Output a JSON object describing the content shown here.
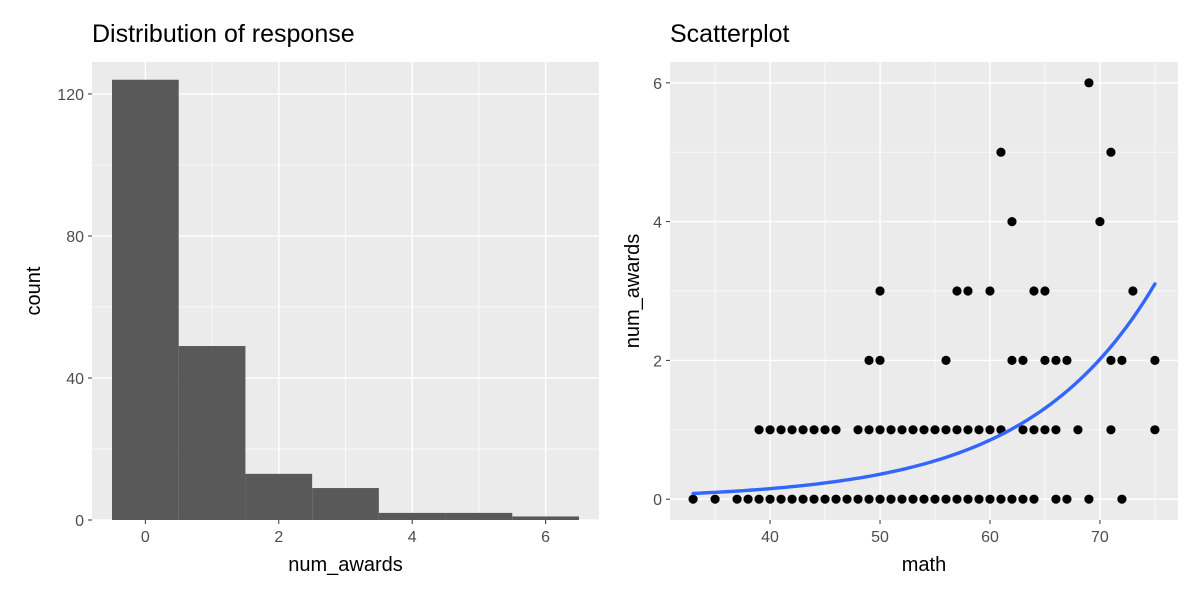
{
  "chart_data": [
    {
      "type": "bar",
      "title": "Distribution of response",
      "xlabel": "num_awards",
      "ylabel": "count",
      "xlim": [
        -0.8,
        6.8
      ],
      "ylim": [
        0,
        129
      ],
      "x_ticks": [
        0,
        2,
        4,
        6
      ],
      "y_ticks": [
        0,
        40,
        80,
        120
      ],
      "bin_width": 1,
      "bins": [
        0,
        1,
        2,
        3,
        4,
        5,
        6
      ],
      "counts": [
        124,
        49,
        13,
        9,
        2,
        2,
        1
      ],
      "bar_color": "#595959"
    },
    {
      "type": "scatter",
      "title": "Scatterplot",
      "xlabel": "math",
      "ylabel": "num_awards",
      "xlim": [
        30.9,
        77.1
      ],
      "ylim": [
        -0.3,
        6.3
      ],
      "x_ticks": [
        40,
        50,
        60,
        70
      ],
      "y_ticks": [
        0,
        2,
        4,
        6
      ],
      "point_color": "#000000",
      "points": [
        [
          33,
          0
        ],
        [
          35,
          0
        ],
        [
          37,
          0
        ],
        [
          38,
          0
        ],
        [
          39,
          0
        ],
        [
          40,
          0
        ],
        [
          41,
          0
        ],
        [
          42,
          0
        ],
        [
          43,
          0
        ],
        [
          44,
          0
        ],
        [
          45,
          0
        ],
        [
          46,
          0
        ],
        [
          47,
          0
        ],
        [
          48,
          0
        ],
        [
          49,
          0
        ],
        [
          50,
          0
        ],
        [
          51,
          0
        ],
        [
          52,
          0
        ],
        [
          53,
          0
        ],
        [
          54,
          0
        ],
        [
          55,
          0
        ],
        [
          56,
          0
        ],
        [
          57,
          0
        ],
        [
          58,
          0
        ],
        [
          59,
          0
        ],
        [
          60,
          0
        ],
        [
          61,
          0
        ],
        [
          62,
          0
        ],
        [
          63,
          0
        ],
        [
          64,
          0
        ],
        [
          66,
          0
        ],
        [
          67,
          0
        ],
        [
          69,
          0
        ],
        [
          72,
          0
        ],
        [
          39,
          1
        ],
        [
          40,
          1
        ],
        [
          41,
          1
        ],
        [
          42,
          1
        ],
        [
          43,
          1
        ],
        [
          44,
          1
        ],
        [
          45,
          1
        ],
        [
          46,
          1
        ],
        [
          48,
          1
        ],
        [
          49,
          1
        ],
        [
          50,
          1
        ],
        [
          51,
          1
        ],
        [
          52,
          1
        ],
        [
          53,
          1
        ],
        [
          54,
          1
        ],
        [
          55,
          1
        ],
        [
          56,
          1
        ],
        [
          57,
          1
        ],
        [
          58,
          1
        ],
        [
          59,
          1
        ],
        [
          60,
          1
        ],
        [
          61,
          1
        ],
        [
          63,
          1
        ],
        [
          64,
          1
        ],
        [
          65,
          1
        ],
        [
          66,
          1
        ],
        [
          68,
          1
        ],
        [
          71,
          1
        ],
        [
          75,
          1
        ],
        [
          49,
          2
        ],
        [
          50,
          2
        ],
        [
          56,
          2
        ],
        [
          62,
          2
        ],
        [
          63,
          2
        ],
        [
          65,
          2
        ],
        [
          66,
          2
        ],
        [
          67,
          2
        ],
        [
          71,
          2
        ],
        [
          72,
          2
        ],
        [
          75,
          2
        ],
        [
          50,
          3
        ],
        [
          57,
          3
        ],
        [
          58,
          3
        ],
        [
          60,
          3
        ],
        [
          64,
          3
        ],
        [
          65,
          3
        ],
        [
          73,
          3
        ],
        [
          62,
          4
        ],
        [
          70,
          4
        ],
        [
          61,
          5
        ],
        [
          71,
          5
        ],
        [
          69,
          6
        ]
      ],
      "fit": {
        "method": "poisson",
        "intercept": -5.333,
        "slope": 0.0862,
        "x_range": [
          33,
          75
        ],
        "color": "#3366ff"
      }
    }
  ]
}
